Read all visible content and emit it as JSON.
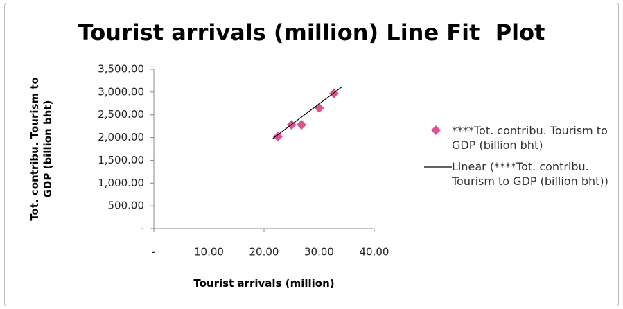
{
  "chart_data": {
    "type": "scatter",
    "title": "Tourist arrivals (million) Line Fit  Plot",
    "xlabel": "Tourist arrivals (million)",
    "ylabel": "Tot. contribu. Tourism to GDP (billion bht)",
    "xlim": [
      0,
      40
    ],
    "xticks": [
      {
        "value": 0,
        "label": "-"
      },
      {
        "value": 10,
        "label": "10.00"
      },
      {
        "value": 20,
        "label": "20.00"
      },
      {
        "value": 30,
        "label": "30.00"
      },
      {
        "value": 40,
        "label": "40.00"
      }
    ],
    "ylim": [
      0,
      3500
    ],
    "yticks": [
      {
        "value": 0,
        "label": "-"
      },
      {
        "value": 500,
        "label": "500.00"
      },
      {
        "value": 1000,
        "label": "1,000.00"
      },
      {
        "value": 1500,
        "label": "1,500.00"
      },
      {
        "value": 2000,
        "label": "2,000.00"
      },
      {
        "value": 2500,
        "label": "2,500.00"
      },
      {
        "value": 3000,
        "label": "3,000.00"
      },
      {
        "value": 3500,
        "label": "3,500.00"
      }
    ],
    "grid": false,
    "legend": "right",
    "series": [
      {
        "name": "****Tot. contribu. Tourism to GDP (billion bht)",
        "color": "#e0528f",
        "mode": "markers",
        "x": [
          22.5,
          25,
          26.8,
          30,
          32.7
        ],
        "values": [
          2020,
          2280,
          2280,
          2650,
          2970
        ]
      },
      {
        "name": "Linear (****Tot. contribu. Tourism to GDP (billion bht))",
        "color": "#000000",
        "mode": "line",
        "x": [
          21.6,
          34.2
        ],
        "values": [
          1980,
          3120
        ]
      }
    ]
  }
}
